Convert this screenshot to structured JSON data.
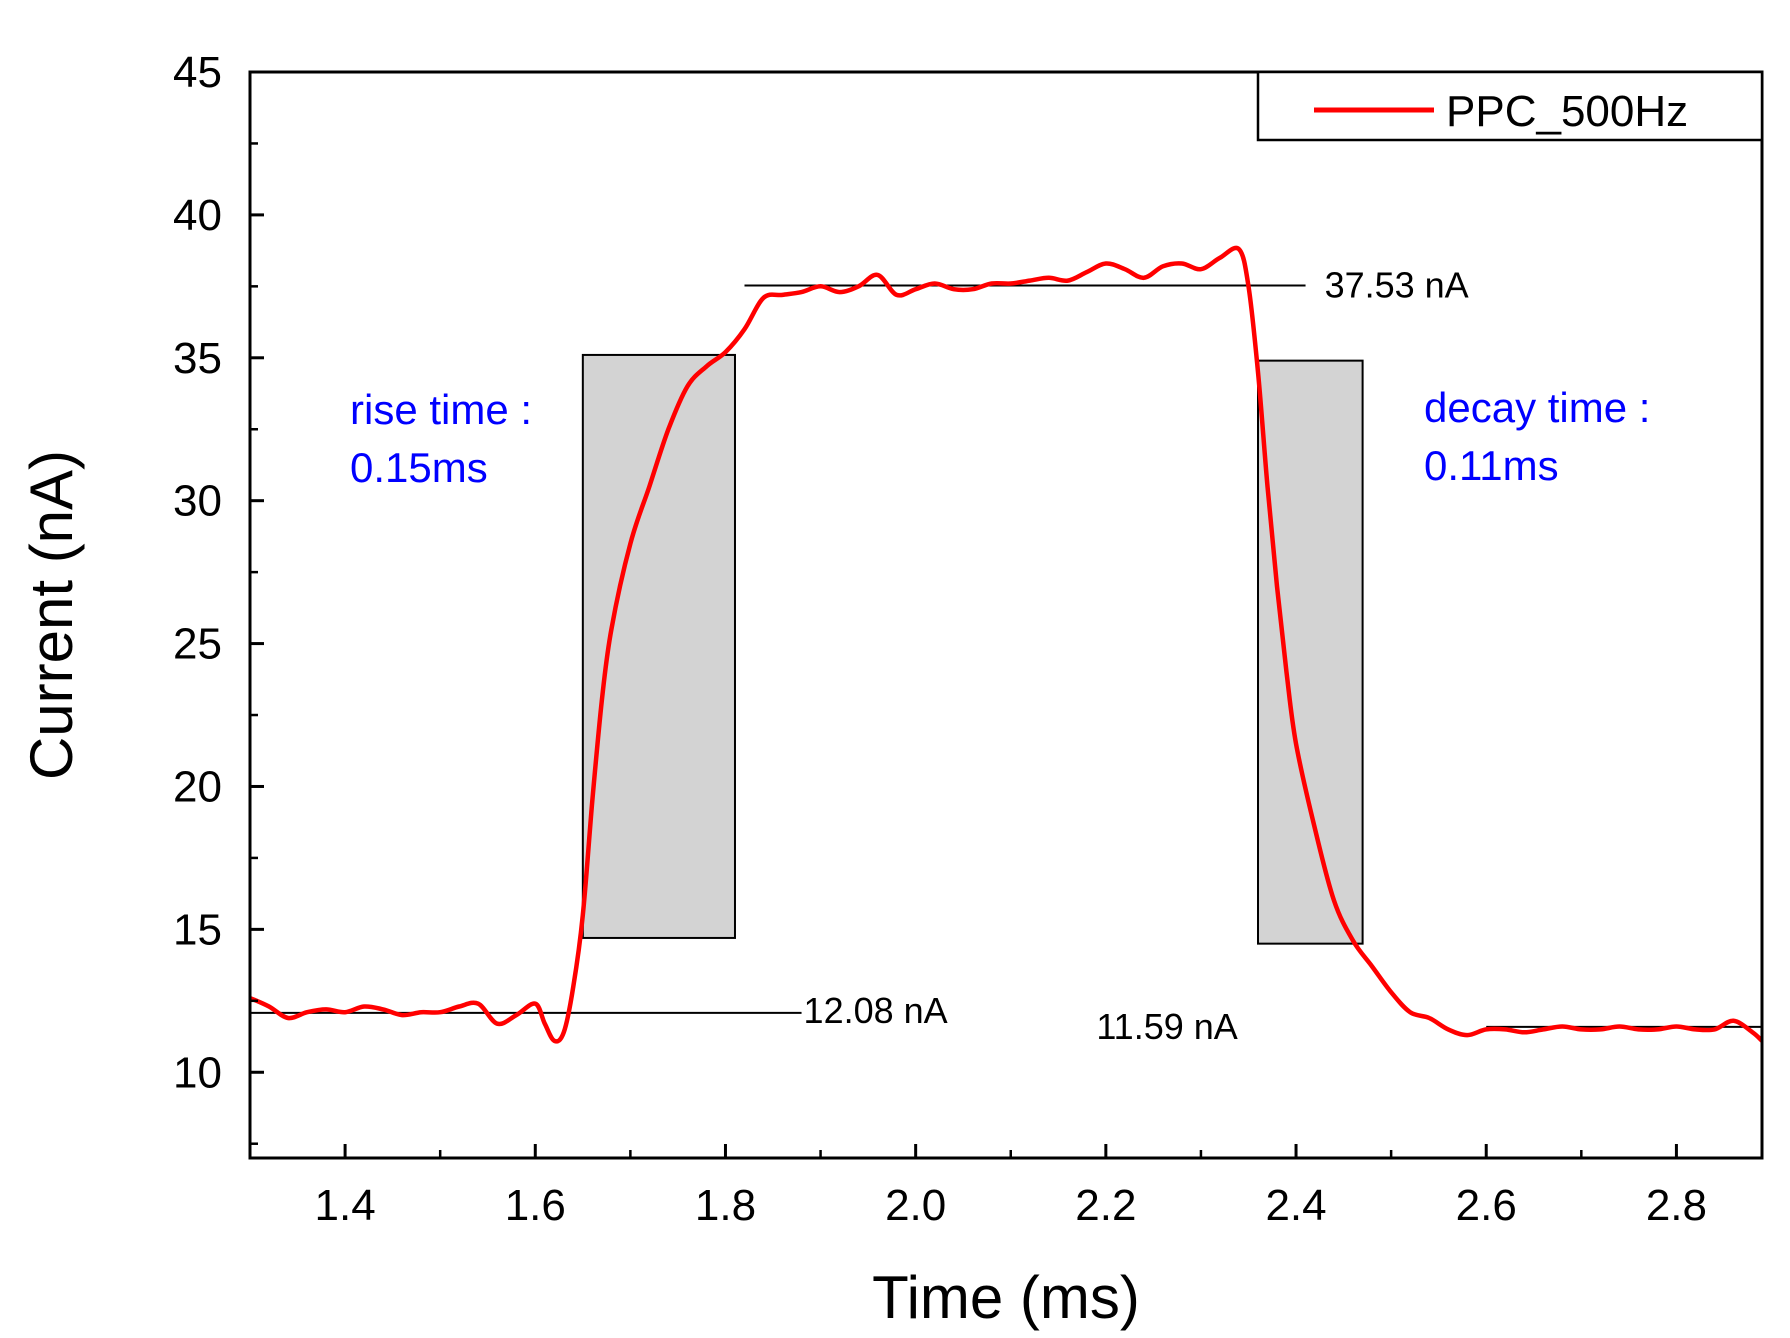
{
  "chart_data": {
    "type": "line",
    "xlabel": "Time (ms)",
    "ylabel": "Current (nA)",
    "xlim": [
      1.3,
      2.89
    ],
    "ylim": [
      7,
      45
    ],
    "x_ticks": [
      1.4,
      1.6,
      1.8,
      2.0,
      2.2,
      2.4,
      2.6,
      2.8
    ],
    "x_tick_labels": [
      "1.4",
      "1.6",
      "1.8",
      "2.0",
      "2.2",
      "2.4",
      "2.6",
      "2.8"
    ],
    "y_ticks": [
      10,
      15,
      20,
      25,
      30,
      35,
      40,
      45
    ],
    "y_tick_labels": [
      "10",
      "15",
      "20",
      "25",
      "30",
      "35",
      "40",
      "45"
    ],
    "series": [
      {
        "name": "PPC_500Hz",
        "color": "#ff0000",
        "x": [
          1.3,
          1.32,
          1.34,
          1.36,
          1.38,
          1.4,
          1.42,
          1.44,
          1.46,
          1.48,
          1.5,
          1.52,
          1.54,
          1.56,
          1.58,
          1.6,
          1.61,
          1.62,
          1.63,
          1.64,
          1.65,
          1.66,
          1.67,
          1.68,
          1.7,
          1.72,
          1.74,
          1.76,
          1.78,
          1.8,
          1.82,
          1.84,
          1.86,
          1.88,
          1.9,
          1.92,
          1.94,
          1.96,
          1.98,
          2.0,
          2.02,
          2.04,
          2.06,
          2.08,
          2.1,
          2.12,
          2.14,
          2.16,
          2.18,
          2.2,
          2.22,
          2.24,
          2.26,
          2.28,
          2.3,
          2.32,
          2.34,
          2.35,
          2.36,
          2.37,
          2.38,
          2.39,
          2.4,
          2.42,
          2.44,
          2.46,
          2.48,
          2.5,
          2.52,
          2.54,
          2.56,
          2.58,
          2.6,
          2.62,
          2.64,
          2.66,
          2.68,
          2.7,
          2.72,
          2.74,
          2.76,
          2.78,
          2.8,
          2.82,
          2.84,
          2.86,
          2.88,
          2.89
        ],
        "y": [
          12.6,
          12.3,
          11.9,
          12.1,
          12.2,
          12.1,
          12.3,
          12.2,
          12.0,
          12.1,
          12.1,
          12.3,
          12.4,
          11.7,
          12.0,
          12.4,
          11.7,
          11.1,
          11.4,
          13.0,
          15.5,
          19.5,
          23.0,
          25.5,
          28.5,
          30.5,
          32.5,
          34.0,
          34.7,
          35.2,
          36.0,
          37.1,
          37.2,
          37.3,
          37.5,
          37.3,
          37.5,
          37.9,
          37.2,
          37.4,
          37.6,
          37.4,
          37.4,
          37.6,
          37.6,
          37.7,
          37.8,
          37.7,
          38.0,
          38.3,
          38.1,
          37.8,
          38.2,
          38.3,
          38.1,
          38.5,
          38.8,
          37.5,
          34.5,
          30.5,
          27.0,
          24.0,
          21.5,
          18.5,
          16.0,
          14.6,
          13.7,
          12.8,
          12.1,
          11.9,
          11.5,
          11.3,
          11.5,
          11.5,
          11.4,
          11.5,
          11.6,
          11.5,
          11.5,
          11.6,
          11.5,
          11.5,
          11.6,
          11.5,
          11.5,
          11.8,
          11.4,
          11.1
        ]
      }
    ],
    "reference_lines": [
      {
        "label": "12.08 nA",
        "value": 12.08,
        "x_range": [
          1.3,
          1.88
        ]
      },
      {
        "label": "37.53 nA",
        "value": 37.53,
        "x_range": [
          1.82,
          2.41
        ]
      },
      {
        "label": "11.59 nA",
        "value": 11.59,
        "x_range": [
          2.6,
          2.89
        ]
      }
    ],
    "shaded_regions": [
      {
        "name": "rise",
        "x_range": [
          1.65,
          1.81
        ],
        "y_range": [
          14.7,
          35.1
        ]
      },
      {
        "name": "decay",
        "x_range": [
          2.36,
          2.47
        ],
        "y_range": [
          14.5,
          34.9
        ]
      }
    ],
    "annotations": [
      {
        "line1": "rise time :",
        "line2": "0.15ms",
        "color": "#0000ff"
      },
      {
        "line1": "decay time :",
        "line2": "0.11ms",
        "color": "#0000ff"
      }
    ],
    "legend": {
      "label": "PPC_500Hz",
      "placement": "top-right"
    }
  }
}
